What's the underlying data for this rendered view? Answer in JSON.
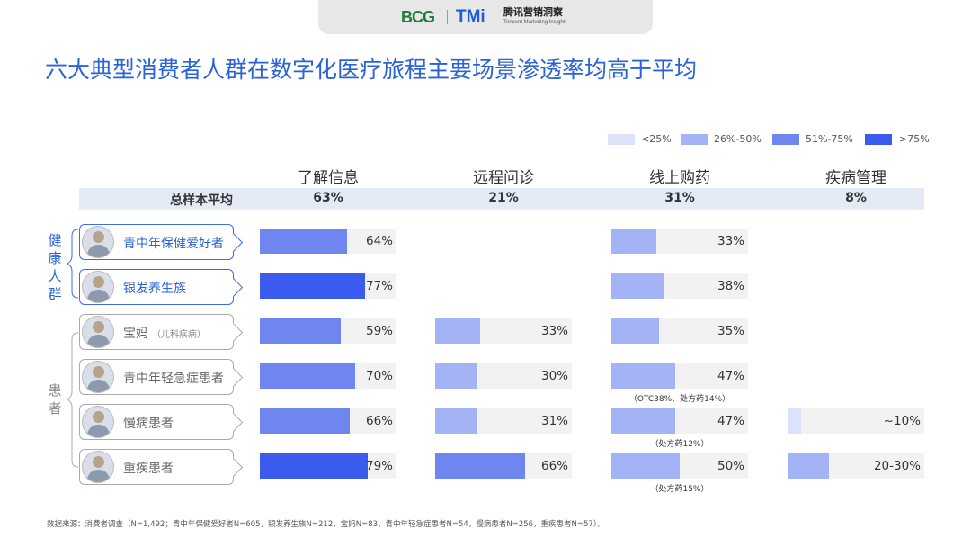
{
  "logo": {
    "bcg": "BCG",
    "tmi": "TMi",
    "tencent_cn": "腾讯营销洞察",
    "tencent_en": "Tencent Marketing Insight"
  },
  "title": "六大典型消费者人群在数字化医疗旅程主要场景渗透率均高于平均",
  "legend": [
    {
      "label": "<25%",
      "color": "#dde2fb"
    },
    {
      "label": "26%-50%",
      "color": "#a4b2f6"
    },
    {
      "label": "51%-75%",
      "color": "#6f86f0"
    },
    {
      "label": ">75%",
      "color": "#3a5bed"
    }
  ],
  "groups": [
    {
      "label": "健康人群",
      "chars": [
        "健",
        "康",
        "人",
        "群"
      ]
    },
    {
      "label": "患者",
      "chars": [
        "患",
        "者"
      ]
    }
  ],
  "chart_data": {
    "type": "bar",
    "columns": [
      "了解信息",
      "远程问诊",
      "线上购药",
      "疾病管理"
    ],
    "average": {
      "label": "总样本平均",
      "values": [
        "63%",
        "21%",
        "31%",
        "8%"
      ]
    },
    "rows": [
      {
        "name": "青中年保健爱好者",
        "sub": "",
        "group": "健康人群",
        "cells": [
          {
            "value": 64,
            "label": "64%",
            "band": 2
          },
          null,
          {
            "value": 33,
            "label": "33%",
            "band": 1
          },
          null
        ]
      },
      {
        "name": "银发养生族",
        "sub": "",
        "group": "健康人群",
        "cells": [
          {
            "value": 77,
            "label": "77%",
            "band": 3
          },
          null,
          {
            "value": 38,
            "label": "38%",
            "band": 1
          },
          null
        ]
      },
      {
        "name": "宝妈",
        "sub": "（儿科疾病）",
        "group": "患者",
        "cells": [
          {
            "value": 59,
            "label": "59%",
            "band": 2
          },
          {
            "value": 33,
            "label": "33%",
            "band": 1
          },
          {
            "value": 35,
            "label": "35%",
            "band": 1
          },
          null
        ]
      },
      {
        "name": "青中年轻急症患者",
        "sub": "",
        "group": "患者",
        "cells": [
          {
            "value": 70,
            "label": "70%",
            "band": 2
          },
          {
            "value": 30,
            "label": "30%",
            "band": 1
          },
          {
            "value": 47,
            "label": "47%",
            "band": 1,
            "note": "（OTC38%、处方药14%）"
          },
          null
        ]
      },
      {
        "name": "慢病患者",
        "sub": "",
        "group": "患者",
        "cells": [
          {
            "value": 66,
            "label": "66%",
            "band": 2
          },
          {
            "value": 31,
            "label": "31%",
            "band": 1
          },
          {
            "value": 47,
            "label": "47%",
            "band": 1,
            "note": "（处方药12%）"
          },
          {
            "value": 10,
            "label": "~10%",
            "band": 0
          }
        ]
      },
      {
        "name": "重疾患者",
        "sub": "",
        "group": "患者",
        "cells": [
          {
            "value": 79,
            "label": "79%",
            "band": 3
          },
          {
            "value": 66,
            "label": "66%",
            "band": 2
          },
          {
            "value": 50,
            "label": "50%",
            "band": 1,
            "note": "（处方药15%）"
          },
          {
            "value": 30,
            "label": "20-30%",
            "band": 1
          }
        ]
      }
    ],
    "xlim": [
      0,
      100
    ]
  },
  "source": "数据来源：消费者调查（N=1,492；青中年保健爱好者N=605，银发养生族N=212，宝妈N=83，青中年轻急症患者N=54，慢病患者N=256，重疾患者N=57）。"
}
